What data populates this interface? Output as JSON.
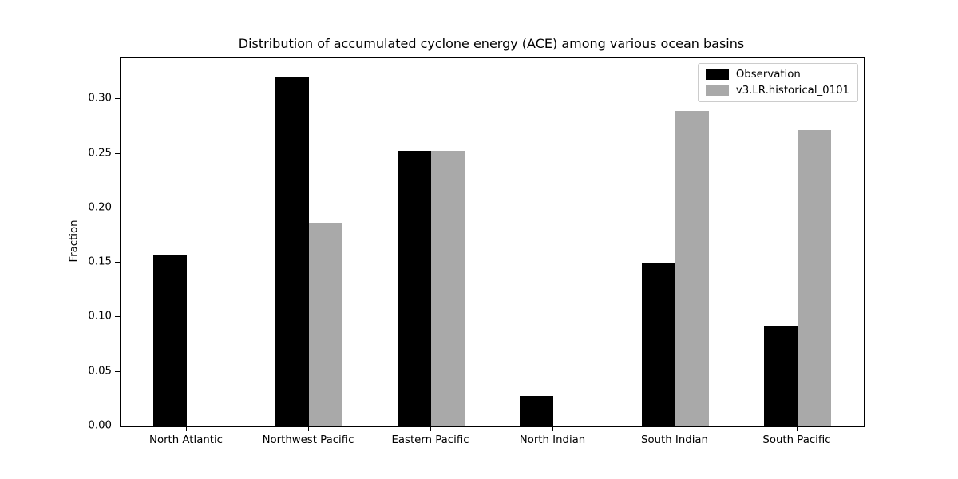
{
  "chart_data": {
    "type": "bar",
    "title": "Distribution of accumulated cyclone energy (ACE) among various ocean basins",
    "xlabel": "",
    "ylabel": "Fraction",
    "categories": [
      "North Atlantic",
      "Northwest Pacific",
      "Eastern Pacific",
      "North Indian",
      "South Indian",
      "South Pacific"
    ],
    "series": [
      {
        "name": "Observation",
        "color": "#000000",
        "values": [
          0.157,
          0.321,
          0.253,
          0.028,
          0.15,
          0.092
        ]
      },
      {
        "name": "v3.LR.historical_0101",
        "color": "#a9a9a9",
        "values": [
          0.0,
          0.187,
          0.253,
          0.0,
          0.289,
          0.272
        ]
      }
    ],
    "ylim": [
      0,
      0.3376
    ],
    "yticks": [
      0.0,
      0.05,
      0.1,
      0.15,
      0.2,
      0.25,
      0.3
    ],
    "ytick_labels": [
      "0.00",
      "0.05",
      "0.10",
      "0.15",
      "0.20",
      "0.25",
      "0.30"
    ],
    "legend_position": "upper right",
    "grid": false,
    "background_color": "#ffffff",
    "axis_color": "#000000"
  }
}
